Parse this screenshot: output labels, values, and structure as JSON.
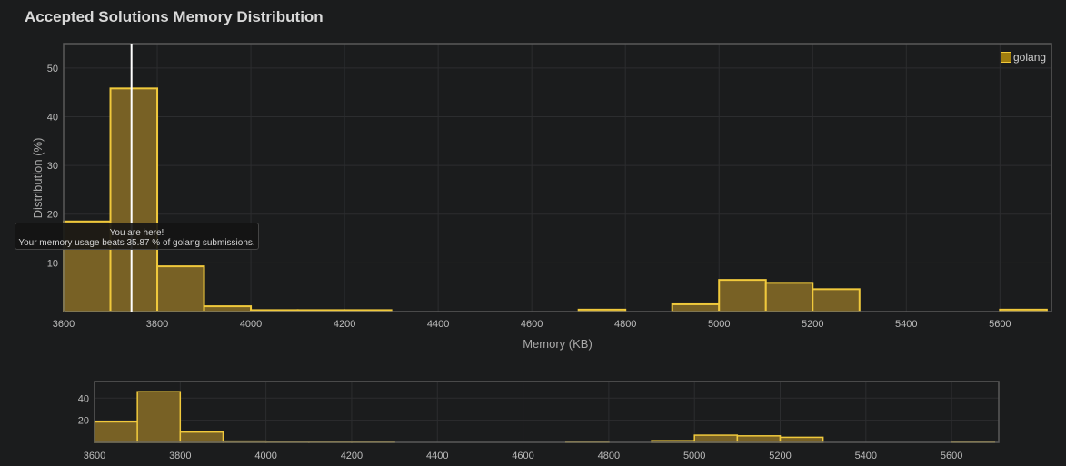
{
  "title": "Accepted Solutions Memory Distribution",
  "tooltip": {
    "line1": "You are here!",
    "line2": "Your memory usage beats 35.87 % of golang submissions."
  },
  "colors": {
    "bar_fill": "#786125",
    "bar_stroke": "#f0c93c",
    "marker": "#ffffff",
    "legend_swatch": "#a07d0e"
  },
  "chart_data": [
    {
      "type": "bar",
      "title": "Accepted Solutions Memory Distribution",
      "xlabel": "Memory (KB)",
      "ylabel": "Distribution (%)",
      "xlim": [
        3600,
        5710
      ],
      "ylim": [
        0,
        55
      ],
      "xticks": [
        3600,
        3800,
        4000,
        4200,
        4400,
        4600,
        4800,
        5000,
        5200,
        5400,
        5600
      ],
      "yticks": [
        10,
        20,
        30,
        40,
        50
      ],
      "bin_width": 100,
      "grid": true,
      "legend": "top-right",
      "series": [
        {
          "name": "golang",
          "bins": [
            {
              "x": 3600,
              "y": 18.5
            },
            {
              "x": 3700,
              "y": 45.8
            },
            {
              "x": 3800,
              "y": 9.3
            },
            {
              "x": 3900,
              "y": 1.1
            },
            {
              "x": 4000,
              "y": 0.3
            },
            {
              "x": 4100,
              "y": 0.3
            },
            {
              "x": 4200,
              "y": 0.3
            },
            {
              "x": 4300,
              "y": 0
            },
            {
              "x": 4400,
              "y": 0
            },
            {
              "x": 4500,
              "y": 0
            },
            {
              "x": 4600,
              "y": 0
            },
            {
              "x": 4700,
              "y": 0.4
            },
            {
              "x": 4800,
              "y": 0
            },
            {
              "x": 4900,
              "y": 1.5
            },
            {
              "x": 5000,
              "y": 6.5
            },
            {
              "x": 5100,
              "y": 5.9
            },
            {
              "x": 5200,
              "y": 4.6
            },
            {
              "x": 5300,
              "y": 0
            },
            {
              "x": 5400,
              "y": 0
            },
            {
              "x": 5500,
              "y": 0
            },
            {
              "x": 5600,
              "y": 0.4
            }
          ]
        }
      ],
      "marker_x": 3745
    },
    {
      "type": "bar",
      "xlim": [
        3600,
        5710
      ],
      "ylim": [
        0,
        55
      ],
      "xticks": [
        3600,
        3800,
        4000,
        4200,
        4400,
        4600,
        4800,
        5000,
        5200,
        5400,
        5600
      ],
      "yticks": [
        20,
        40
      ],
      "series_ref": "golang"
    }
  ]
}
